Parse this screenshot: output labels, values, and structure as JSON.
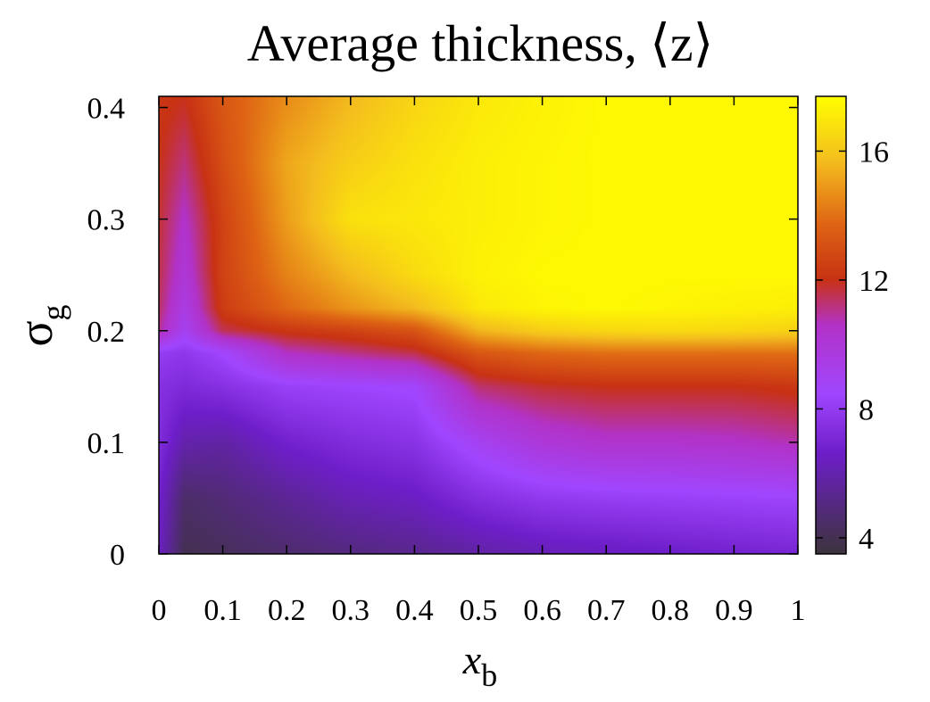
{
  "chart_data": {
    "type": "heatmap",
    "title": "Average thickness, ⟨z⟩",
    "xlabel": "x",
    "xlabel_sub": "b",
    "ylabel": "σ",
    "ylabel_sub": "g",
    "xlim": [
      0,
      1
    ],
    "ylim": [
      0,
      0.41
    ],
    "x_ticks": [
      "0",
      "0.1",
      "0.2",
      "0.3",
      "0.4",
      "0.5",
      "0.6",
      "0.7",
      "0.8",
      "0.9",
      "1"
    ],
    "y_ticks": [
      "0",
      "0.1",
      "0.2",
      "0.3",
      "0.4"
    ],
    "colorbar": {
      "range": [
        3.5,
        17.7
      ],
      "ticks": [
        "4",
        "8",
        "12",
        "16"
      ],
      "colormap": "gnuplot-pm3d-gray-purple-red-yellow"
    },
    "x": [
      0,
      0.04,
      0.1,
      0.2,
      0.3,
      0.4,
      0.5,
      0.6,
      0.7,
      0.8,
      0.9,
      1.0
    ],
    "y": [
      0,
      0.05,
      0.1,
      0.15,
      0.18,
      0.2,
      0.22,
      0.25,
      0.3,
      0.35,
      0.41
    ],
    "z": [
      [
        6.5,
        4.0,
        4.2,
        4.6,
        5.0,
        5.3,
        5.8,
        6.2,
        6.4,
        6.6,
        6.8,
        7.0
      ],
      [
        6.8,
        4.5,
        4.8,
        5.5,
        6.2,
        6.5,
        7.4,
        7.9,
        8.1,
        8.2,
        8.3,
        8.4
      ],
      [
        7.3,
        6.0,
        5.8,
        6.8,
        7.3,
        7.6,
        9.0,
        10.0,
        10.4,
        10.4,
        10.5,
        10.8
      ],
      [
        7.5,
        7.2,
        7.5,
        8.2,
        8.4,
        8.6,
        11.3,
        11.8,
        12.0,
        12.0,
        12.0,
        12.2
      ],
      [
        8.0,
        7.8,
        8.5,
        10.6,
        11.1,
        11.6,
        13.3,
        13.8,
        14.0,
        14.0,
        14.0,
        14.0
      ],
      [
        11.0,
        9.0,
        11.5,
        12.2,
        12.6,
        13.2,
        15.5,
        16.2,
        16.5,
        16.6,
        16.5,
        16.3
      ],
      [
        11.4,
        9.5,
        12.4,
        13.8,
        14.8,
        15.6,
        17.0,
        17.4,
        17.5,
        17.4,
        17.3,
        17.2
      ],
      [
        11.6,
        10.0,
        12.6,
        14.4,
        15.6,
        16.6,
        17.3,
        17.5,
        17.5,
        17.5,
        17.5,
        17.5
      ],
      [
        11.8,
        10.5,
        12.6,
        15.0,
        16.8,
        17.0,
        17.2,
        17.4,
        17.5,
        17.5,
        17.5,
        17.5
      ],
      [
        12.0,
        11.2,
        13.0,
        15.2,
        16.2,
        16.8,
        17.2,
        17.4,
        17.5,
        17.5,
        17.5,
        17.5
      ],
      [
        12.2,
        12.0,
        13.3,
        14.6,
        15.6,
        16.4,
        17.0,
        17.3,
        17.5,
        17.5,
        17.5,
        17.5
      ]
    ]
  }
}
